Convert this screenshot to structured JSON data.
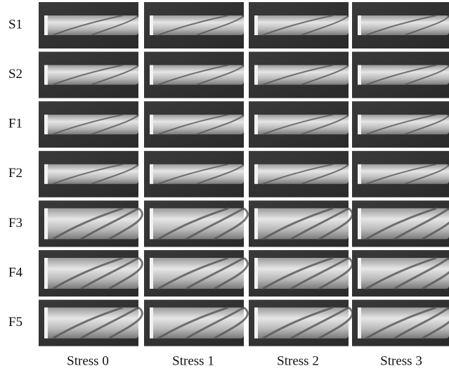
{
  "figure": {
    "row_labels": [
      "S1",
      "S2",
      "F1",
      "F2",
      "F3",
      "F4",
      "F5"
    ],
    "column_labels": [
      "Stress 0",
      "Stress 1",
      "Stress 2",
      "Stress 3"
    ]
  }
}
